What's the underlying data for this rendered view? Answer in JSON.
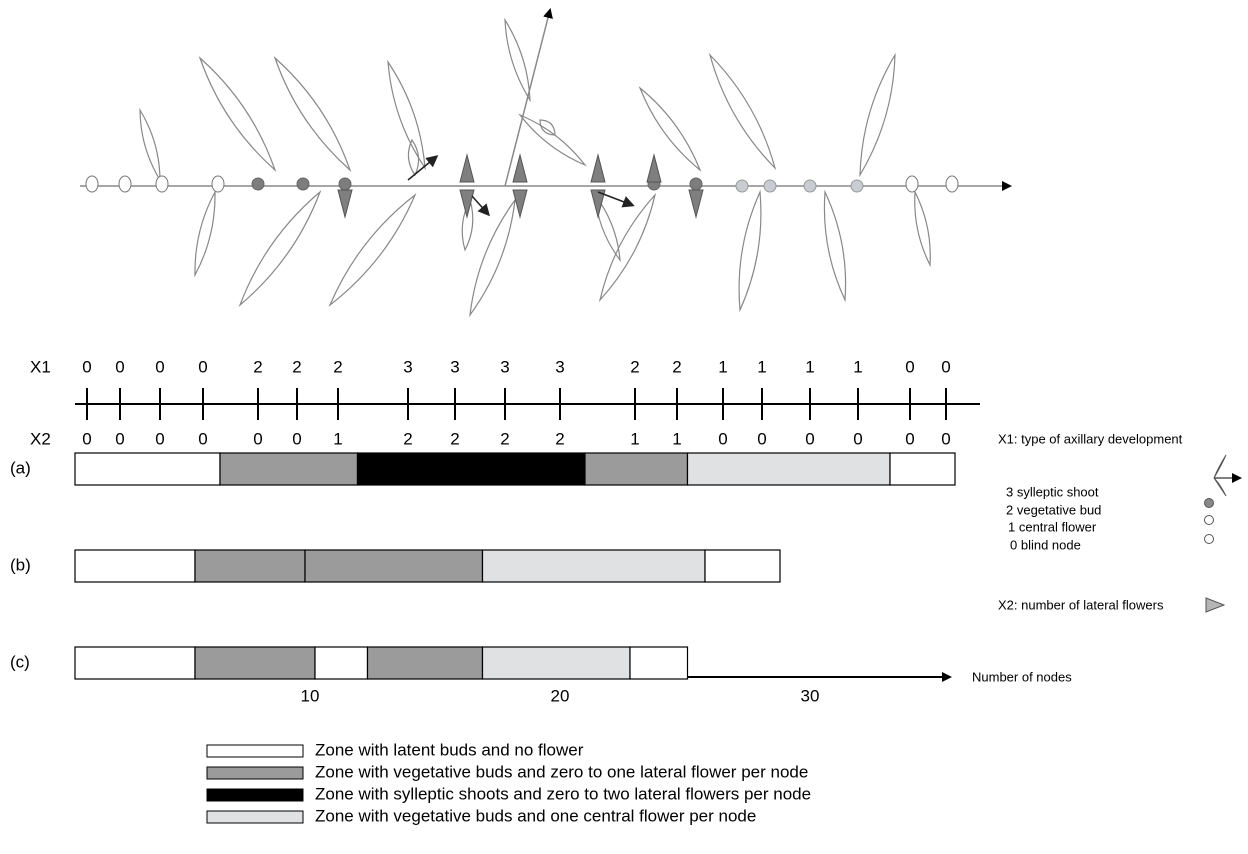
{
  "x1_label": "X1",
  "x2_label": "X2",
  "nodes": {
    "x1": [
      0,
      0,
      0,
      0,
      2,
      2,
      2,
      3,
      3,
      3,
      3,
      2,
      2,
      1,
      1,
      1,
      1,
      0,
      0
    ],
    "x2": [
      0,
      0,
      0,
      0,
      0,
      0,
      1,
      2,
      2,
      2,
      2,
      1,
      1,
      0,
      0,
      0,
      0,
      0,
      0
    ]
  },
  "key": {
    "x1_title": "X1: type of axillary development",
    "items": [
      "3 sylleptic shoot",
      "2 vegetative bud",
      "1 central flower",
      "0 blind node"
    ],
    "x2_title": "X2: number of lateral flowers"
  },
  "zones": [
    {
      "label": "Zone with latent buds and no flower",
      "color": "#ffffff"
    },
    {
      "label": "Zone with vegetative buds and zero to one lateral flower per node",
      "color": "#9b9b9b"
    },
    {
      "label": "Zone with sylleptic shoots and zero to two lateral flowers per node",
      "color": "#000000"
    },
    {
      "label": "Zone with vegetative buds and one central flower per node",
      "color": "#e0e1e3"
    }
  ],
  "rows": [
    {
      "label": "(a)",
      "segments": [
        {
          "start": 0.6,
          "end": 6.4,
          "zone": 0
        },
        {
          "start": 6.4,
          "end": 11.9,
          "zone": 1
        },
        {
          "start": 11.9,
          "end": 21.0,
          "zone": 2
        },
        {
          "start": 21.0,
          "end": 25.1,
          "zone": 1
        },
        {
          "start": 25.1,
          "end": 33.2,
          "zone": 3
        },
        {
          "start": 33.2,
          "end": 35.8,
          "zone": 0
        }
      ]
    },
    {
      "label": "(b)",
      "segments": [
        {
          "start": 0.6,
          "end": 5.4,
          "zone": 0
        },
        {
          "start": 5.4,
          "end": 9.8,
          "zone": 1
        },
        {
          "start": 9.8,
          "end": 16.9,
          "zone": 1
        },
        {
          "start": 16.9,
          "end": 25.8,
          "zone": 3
        },
        {
          "start": 25.8,
          "end": 28.8,
          "zone": 0
        }
      ]
    },
    {
      "label": "(c)",
      "segments": [
        {
          "start": 0.6,
          "end": 5.4,
          "zone": 0
        },
        {
          "start": 5.4,
          "end": 10.2,
          "zone": 1
        },
        {
          "start": 10.2,
          "end": 12.3,
          "zone": 0
        },
        {
          "start": 12.3,
          "end": 16.9,
          "zone": 1
        },
        {
          "start": 16.9,
          "end": 22.8,
          "zone": 3
        },
        {
          "start": 22.8,
          "end": 25.1,
          "zone": 0
        }
      ]
    }
  ],
  "axis": {
    "label": "Number of nodes",
    "xlim": [
      0.6,
      35.6
    ],
    "ticks": [
      10,
      20,
      30
    ]
  }
}
